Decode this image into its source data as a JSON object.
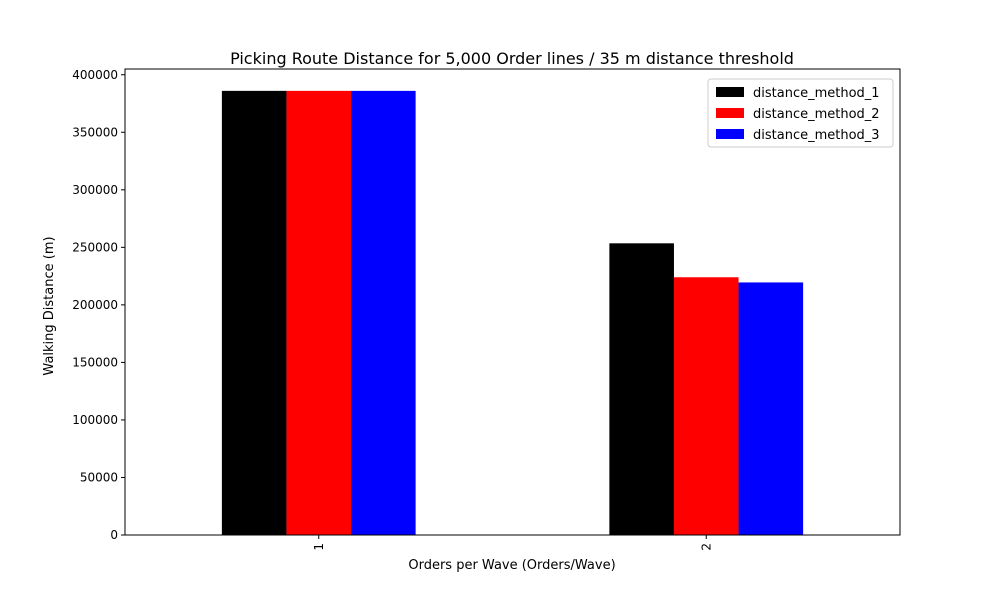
{
  "chart_data": {
    "type": "bar",
    "title": "Picking Route Distance for 5,000 Order lines / 35 m distance threshold",
    "xlabel": "Orders per Wave (Orders/Wave)",
    "ylabel": "Walking Distance (m)",
    "categories": [
      "1",
      "2"
    ],
    "series": [
      {
        "name": "distance_method_1",
        "color": "#000000",
        "values": [
          386000,
          253500
        ]
      },
      {
        "name": "distance_method_2",
        "color": "#ff0000",
        "values": [
          386000,
          224000
        ]
      },
      {
        "name": "distance_method_3",
        "color": "#0000ff",
        "values": [
          386000,
          219500
        ]
      }
    ],
    "ylim": [
      0,
      405000
    ],
    "yticks": [
      0,
      50000,
      100000,
      150000,
      200000,
      250000,
      300000,
      350000,
      400000
    ],
    "ytick_labels": [
      "0",
      "50000",
      "100000",
      "150000",
      "200000",
      "250000",
      "300000",
      "350000",
      "400000"
    ],
    "xtick_rotation": "vertical",
    "grid": false,
    "legend_position": "top-right"
  }
}
